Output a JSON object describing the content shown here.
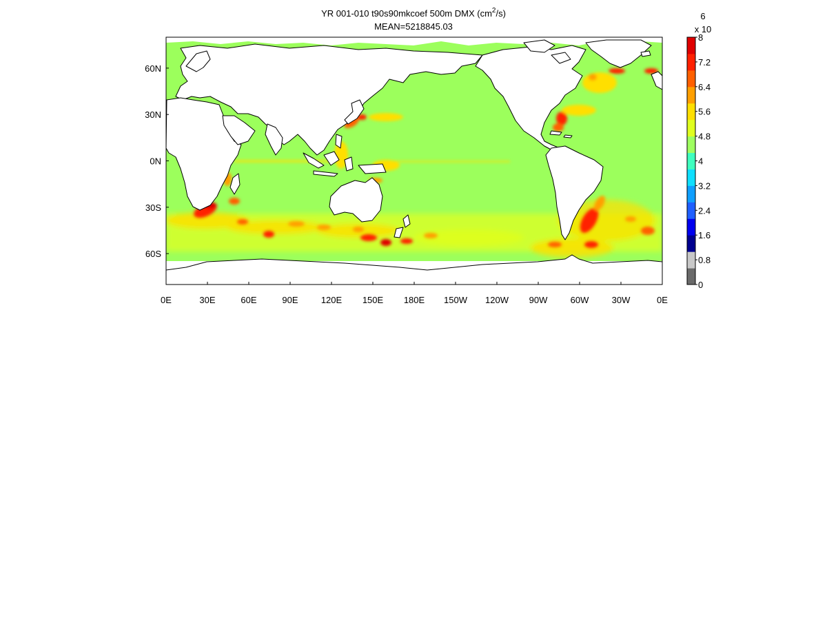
{
  "title": {
    "line1_prefix": "YR 001-010 t90s90mkcoef 500m DMX (cm",
    "line1_sup": "2",
    "line1_suffix": "/s)",
    "line2": "MEAN=5218845.03"
  },
  "x_ticks": [
    "0E",
    "30E",
    "60E",
    "90E",
    "120E",
    "150E",
    "180E",
    "150W",
    "120W",
    "90W",
    "60W",
    "30W",
    "0E"
  ],
  "y_ticks": [
    "60N",
    "30N",
    "0N",
    "30S",
    "60S"
  ],
  "colorbar": {
    "exponent_prefix": "x 10",
    "exponent": "6",
    "tick_labels": [
      "8",
      "7.2",
      "6.4",
      "5.6",
      "4.8",
      "4",
      "3.2",
      "2.4",
      "1.6",
      "0.8",
      "0"
    ],
    "colors": [
      "#6a6a6a",
      "#c8c8c8",
      "#00008f",
      "#0000ef",
      "#1f5fff",
      "#0f9fff",
      "#0fdfff",
      "#3fffbf",
      "#9fff60",
      "#dfff1f",
      "#ffdf00",
      "#ff9f00",
      "#ff6000",
      "#ff2000",
      "#df0000"
    ]
  },
  "colors": {
    "ocean_base": "#9cff5c",
    "land": "#ffffff",
    "coastline": "#000000"
  }
}
